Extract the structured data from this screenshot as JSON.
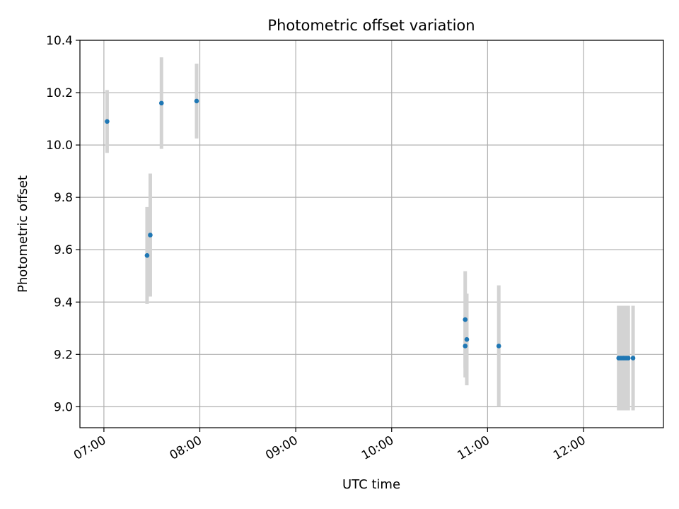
{
  "chart_data": {
    "type": "scatter",
    "title": "Photometric offset variation",
    "xlabel": "UTC time",
    "ylabel": "Photometric offset",
    "xlim": [
      "06:45",
      "12:50"
    ],
    "ylim": [
      8.92,
      10.4
    ],
    "x_ticks": [
      "07:00",
      "08:00",
      "09:00",
      "10:00",
      "11:00",
      "12:00"
    ],
    "y_ticks": [
      9.0,
      9.2,
      9.4,
      9.6,
      9.8,
      10.0,
      10.2,
      10.4
    ],
    "y_tick_labels": [
      "9.0",
      "9.2",
      "9.4",
      "9.6",
      "9.8",
      "10.0",
      "10.2",
      "10.4"
    ],
    "grid": true,
    "marker_color": "#1f77b4",
    "errorbar_color": "#d3d3d3",
    "points": [
      {
        "t": "07:02",
        "y": 10.09,
        "err": 0.12
      },
      {
        "t": "07:27",
        "y": 9.578,
        "err": 0.185
      },
      {
        "t": "07:29",
        "y": 9.656,
        "err": 0.235
      },
      {
        "t": "07:36",
        "y": 10.16,
        "err": 0.175
      },
      {
        "t": "07:58",
        "y": 10.168,
        "err": 0.143
      },
      {
        "t": "10:46",
        "y": 9.333,
        "err": 0.185
      },
      {
        "t": "10:46",
        "y": 9.232,
        "err": 0.12
      },
      {
        "t": "10:47",
        "y": 9.257,
        "err": 0.175
      },
      {
        "t": "11:07",
        "y": 9.232,
        "err": 0.232
      },
      {
        "t": "12:22",
        "y": 9.186,
        "err": 0.2
      },
      {
        "t": "12:23",
        "y": 9.186,
        "err": 0.2
      },
      {
        "t": "12:24",
        "y": 9.186,
        "err": 0.2
      },
      {
        "t": "12:25",
        "y": 9.186,
        "err": 0.2
      },
      {
        "t": "12:26",
        "y": 9.186,
        "err": 0.2
      },
      {
        "t": "12:27",
        "y": 9.186,
        "err": 0.2
      },
      {
        "t": "12:28",
        "y": 9.186,
        "err": 0.2
      },
      {
        "t": "12:31",
        "y": 9.186,
        "err": 0.2
      }
    ]
  }
}
